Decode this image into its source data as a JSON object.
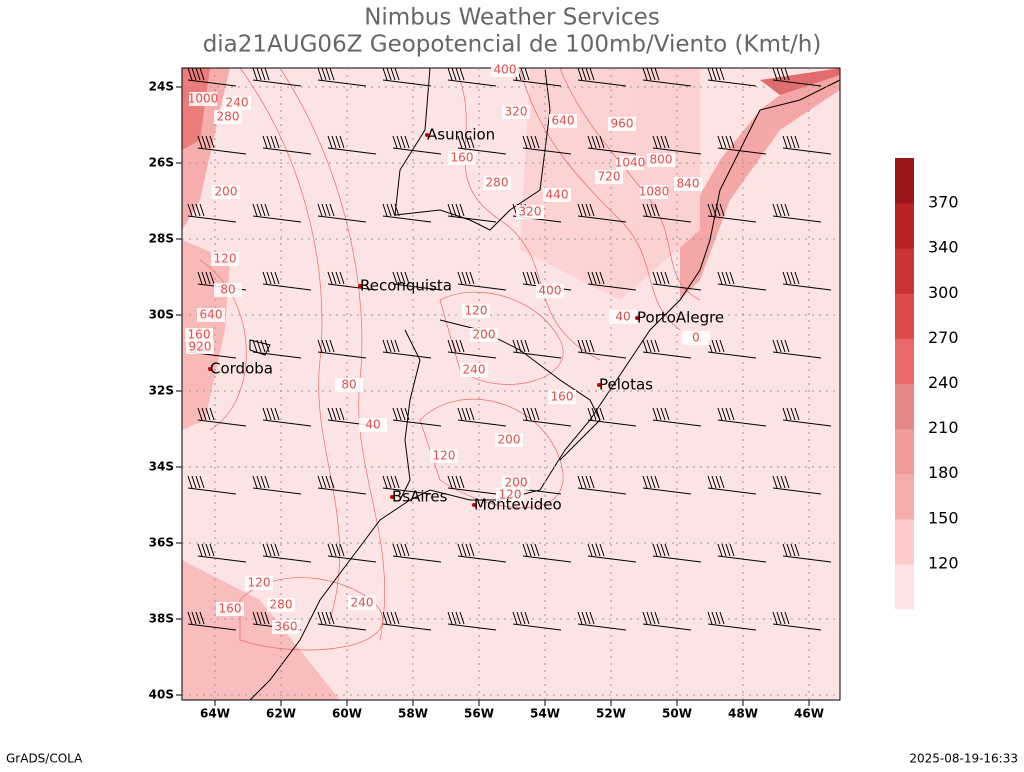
{
  "header": {
    "title": "Nimbus Weather Services",
    "subtitle": "dia21AUG06Z Geopotencial de 100mb/Viento (Kmt/h)"
  },
  "map": {
    "lat_labels": [
      "24S",
      "26S",
      "28S",
      "30S",
      "32S",
      "34S",
      "36S",
      "38S",
      "40S"
    ],
    "lon_labels": [
      "64W",
      "62W",
      "60W",
      "58W",
      "56W",
      "54W",
      "52W",
      "50W",
      "48W",
      "46W"
    ],
    "cities": [
      "Asuncion",
      "Reconquista",
      "Cordoba",
      "PortoAlegre",
      "Pelotas",
      "BsAires",
      "Montevideo"
    ],
    "contour_labels": [
      "1000",
      "240",
      "280",
      "200",
      "160",
      "280",
      "320",
      "400",
      "640",
      "960",
      "720",
      "1040",
      "1080",
      "800",
      "840",
      "440",
      "320",
      "400",
      "120",
      "160",
      "200",
      "240",
      "120",
      "40",
      "0",
      "80",
      "80",
      "40",
      "120",
      "200",
      "160",
      "200",
      "120",
      "240",
      "280",
      "360",
      "160",
      "120",
      "920",
      "640"
    ]
  },
  "colorbar": {
    "levels": [
      120,
      150,
      180,
      210,
      240,
      270,
      300,
      340,
      370
    ],
    "colors": [
      "#fde3e3",
      "#fccaca",
      "#f8adad",
      "#f19a9a",
      "#e58787",
      "#ea6a6a",
      "#dd4b4b",
      "#cb3434",
      "#b82222",
      "#9b1616"
    ]
  },
  "footer": {
    "left": "GrADS/COLA",
    "right": "2025-08-19-16:33"
  }
}
